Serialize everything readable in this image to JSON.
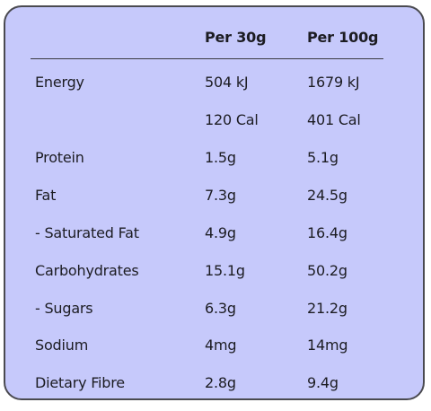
{
  "table": {
    "header": {
      "label": "",
      "per_30g": "Per 30g",
      "per_100g": "Per 100g"
    },
    "rows": [
      {
        "label": "Energy",
        "per_30g": "504 kJ",
        "per_100g": "1679 kJ"
      },
      {
        "label": "",
        "per_30g": "120 Cal",
        "per_100g": "401 Cal"
      },
      {
        "label": "Protein",
        "per_30g": "1.5g",
        "per_100g": "5.1g"
      },
      {
        "label": "Fat",
        "per_30g": "7.3g",
        "per_100g": "24.5g"
      },
      {
        "label": "- Saturated Fat",
        "per_30g": "4.9g",
        "per_100g": "16.4g"
      },
      {
        "label": "Carbohydrates",
        "per_30g": "15.1g",
        "per_100g": "50.2g"
      },
      {
        "label": "- Sugars",
        "per_30g": "6.3g",
        "per_100g": "21.2g"
      },
      {
        "label": "Sodium",
        "per_30g": "4mg",
        "per_100g": "14mg"
      },
      {
        "label": "Dietary Fibre",
        "per_30g": "2.8g",
        "per_100g": "9.4g"
      }
    ]
  },
  "colors": {
    "panel_background": "#c6c9fb",
    "border": "#4a4a50",
    "text": "#1c1c22"
  }
}
